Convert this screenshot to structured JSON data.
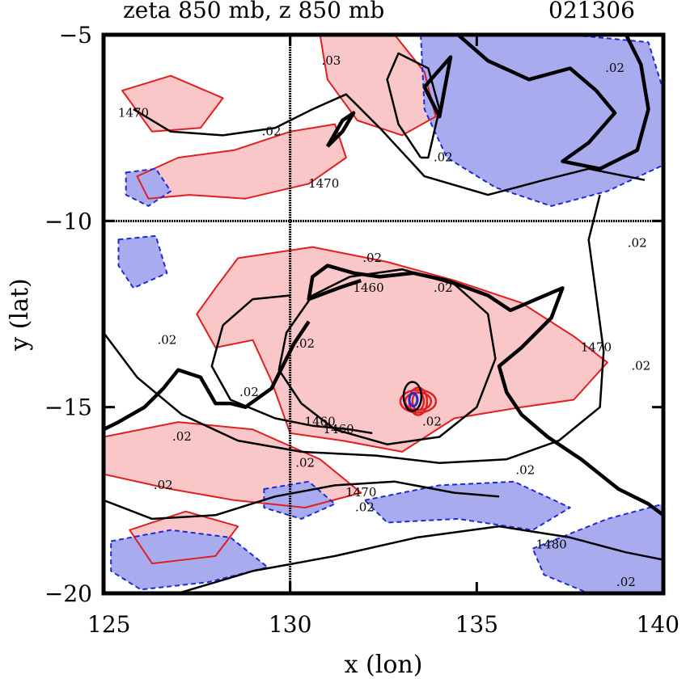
{
  "chart_data": {
    "type": "contour",
    "title_left": "zeta 850 mb, z 850 mb",
    "title_right": "021306",
    "xlabel": "x (lon)",
    "ylabel": "y (lat)",
    "xlim": [
      125,
      140
    ],
    "ylim": [
      -20,
      -5
    ],
    "xticks": [
      {
        "value": 125,
        "label": "125"
      },
      {
        "value": 130,
        "label": "130"
      },
      {
        "value": 135,
        "label": "135"
      },
      {
        "value": 140,
        "label": "140"
      }
    ],
    "yticks": [
      {
        "value": -5,
        "label": "−5"
      },
      {
        "value": -10,
        "label": "−10"
      },
      {
        "value": -15,
        "label": "−15"
      },
      {
        "value": -20,
        "label": "−20"
      }
    ],
    "grid_lines": {
      "x": [
        130
      ],
      "y": [
        -10
      ]
    },
    "colors": {
      "positive_fill": "#f9c7c7",
      "positive_line": "#e02020",
      "negative_fill": "#a9abef",
      "negative_line": "#1e2ad6",
      "height_line": "#000000"
    },
    "height_contours": [
      {
        "level": 1460,
        "points": [
          [
            131.6,
            -11.5
          ],
          [
            133.0,
            -11.3
          ],
          [
            134.4,
            -11.7
          ],
          [
            135.3,
            -12.5
          ],
          [
            135.5,
            -13.7
          ],
          [
            135.0,
            -15.0
          ],
          [
            134.0,
            -15.8
          ],
          [
            132.6,
            -16.0
          ],
          [
            131.2,
            -15.6
          ],
          [
            130.3,
            -14.9
          ],
          [
            129.7,
            -14.0
          ],
          [
            129.9,
            -13.0
          ],
          [
            130.6,
            -12.0
          ],
          [
            131.6,
            -11.5
          ]
        ]
      },
      {
        "level": 1460,
        "points": [
          [
            130.0,
            -12.0
          ],
          [
            129.0,
            -12.1
          ],
          [
            128.2,
            -12.8
          ],
          [
            127.9,
            -13.9
          ],
          [
            128.4,
            -14.8
          ],
          [
            129.6,
            -15.3
          ],
          [
            130.6,
            -15.5
          ],
          [
            131.6,
            -15.6
          ],
          [
            132.2,
            -15.7
          ]
        ]
      },
      {
        "level": 1470,
        "points": [
          [
            125.0,
            -13.0
          ],
          [
            125.9,
            -14.2
          ],
          [
            127.1,
            -15.2
          ],
          [
            128.6,
            -15.9
          ],
          [
            130.3,
            -16.2
          ],
          [
            132.3,
            -16.3
          ],
          [
            134.0,
            -16.5
          ],
          [
            135.8,
            -16.4
          ],
          [
            137.2,
            -15.9
          ],
          [
            138.3,
            -15.0
          ],
          [
            138.4,
            -13.5
          ],
          [
            138.2,
            -12.0
          ],
          [
            138.0,
            -10.5
          ],
          [
            138.3,
            -9.3
          ]
        ]
      },
      {
        "level": 1470,
        "points": [
          [
            125.0,
            -17.5
          ],
          [
            126.3,
            -18.0
          ],
          [
            128.0,
            -17.9
          ],
          [
            129.6,
            -17.4
          ],
          [
            131.2,
            -17.1
          ],
          [
            132.8,
            -17.0
          ],
          [
            134.4,
            -17.3
          ],
          [
            135.6,
            -17.4
          ]
        ]
      },
      {
        "level": 1470,
        "points": [
          [
            125.8,
            -7.0
          ],
          [
            126.8,
            -7.6
          ],
          [
            128.2,
            -7.7
          ],
          [
            129.6,
            -7.5
          ],
          [
            130.6,
            -7.0
          ],
          [
            131.5,
            -6.6
          ],
          [
            132.4,
            -7.5
          ],
          [
            133.6,
            -8.8
          ],
          [
            135.3,
            -9.3
          ],
          [
            136.8,
            -8.9
          ],
          [
            138.0,
            -8.6
          ],
          [
            139.5,
            -8.9
          ]
        ]
      },
      {
        "level": 1480,
        "points": [
          [
            127.0,
            -20.0
          ],
          [
            129.0,
            -19.4
          ],
          [
            131.2,
            -19.0
          ],
          [
            133.4,
            -18.5
          ],
          [
            135.6,
            -18.2
          ],
          [
            137.5,
            -18.5
          ],
          [
            139.0,
            -18.9
          ],
          [
            140.0,
            -19.1
          ]
        ]
      },
      {
        "level": 1460,
        "points": [
          [
            133.5,
            -8.3
          ],
          [
            132.9,
            -7.4
          ],
          [
            132.6,
            -6.2
          ],
          [
            132.9,
            -5.5
          ],
          [
            133.7,
            -5.9
          ],
          [
            134.0,
            -7.0
          ],
          [
            133.7,
            -8.3
          ],
          [
            133.5,
            -8.3
          ]
        ]
      }
    ],
    "coastlines": [
      {
        "points": [
          [
            131.9,
            -11.6
          ],
          [
            131.3,
            -11.8
          ],
          [
            130.5,
            -12.1
          ],
          [
            130.6,
            -11.5
          ],
          [
            131.0,
            -11.2
          ],
          [
            131.7,
            -11.4
          ],
          [
            132.4,
            -11.5
          ],
          [
            133.3,
            -11.4
          ],
          [
            134.2,
            -11.6
          ],
          [
            135.3,
            -12.0
          ],
          [
            135.9,
            -12.4
          ],
          [
            136.6,
            -12.1
          ],
          [
            137.3,
            -11.8
          ],
          [
            137.0,
            -12.6
          ],
          [
            136.2,
            -13.4
          ],
          [
            135.6,
            -13.9
          ],
          [
            135.8,
            -14.6
          ],
          [
            136.2,
            -15.2
          ],
          [
            136.9,
            -15.8
          ],
          [
            137.8,
            -16.4
          ],
          [
            138.8,
            -17.2
          ],
          [
            139.6,
            -17.6
          ],
          [
            140.0,
            -17.9
          ]
        ]
      },
      {
        "points": [
          [
            130.5,
            -12.7
          ],
          [
            130.1,
            -13.3
          ],
          [
            129.5,
            -14.5
          ],
          [
            128.8,
            -15.0
          ],
          [
            128.4,
            -14.9
          ],
          [
            128.0,
            -14.9
          ],
          [
            127.6,
            -14.2
          ],
          [
            127.0,
            -14.0
          ],
          [
            126.6,
            -14.5
          ],
          [
            126.1,
            -15.0
          ],
          [
            125.4,
            -15.4
          ],
          [
            125.0,
            -15.6
          ]
        ]
      },
      {
        "points": [
          [
            134.5,
            -5.0
          ],
          [
            135.3,
            -5.7
          ],
          [
            136.4,
            -6.2
          ],
          [
            137.5,
            -5.9
          ],
          [
            138.2,
            -6.5
          ],
          [
            138.7,
            -7.1
          ],
          [
            138.0,
            -7.9
          ],
          [
            137.3,
            -8.4
          ],
          [
            138.3,
            -8.6
          ],
          [
            139.3,
            -8.1
          ],
          [
            139.6,
            -7.0
          ],
          [
            139.4,
            -5.8
          ],
          [
            139.0,
            -5.0
          ]
        ]
      },
      {
        "points": [
          [
            131.0,
            -8.0
          ],
          [
            131.4,
            -7.6
          ],
          [
            131.7,
            -7.1
          ],
          [
            131.4,
            -7.3
          ],
          [
            131.0,
            -8.0
          ]
        ]
      },
      {
        "points": [
          [
            133.6,
            -6.4
          ],
          [
            134.3,
            -5.6
          ],
          [
            134.0,
            -7.2
          ],
          [
            133.6,
            -6.4
          ]
        ]
      }
    ],
    "vorticity_regions": [
      {
        "sign": "positive",
        "points": [
          [
            128.6,
            -11.0
          ],
          [
            130.6,
            -10.7
          ],
          [
            132.6,
            -11.1
          ],
          [
            134.4,
            -11.6
          ],
          [
            136.2,
            -12.2
          ],
          [
            137.6,
            -13.1
          ],
          [
            138.5,
            -13.8
          ],
          [
            137.6,
            -14.8
          ],
          [
            136.2,
            -15.0
          ],
          [
            134.4,
            -15.3
          ],
          [
            133.0,
            -16.2
          ],
          [
            131.4,
            -15.9
          ],
          [
            130.0,
            -15.7
          ],
          [
            129.5,
            -14.3
          ],
          [
            129.0,
            -13.2
          ],
          [
            128.0,
            -13.4
          ],
          [
            127.5,
            -12.5
          ],
          [
            128.0,
            -11.8
          ],
          [
            128.6,
            -11.0
          ]
        ]
      },
      {
        "sign": "positive",
        "points": [
          [
            125.9,
            -8.8
          ],
          [
            127.0,
            -8.3
          ],
          [
            128.5,
            -8.1
          ],
          [
            130.0,
            -7.6
          ],
          [
            131.2,
            -7.4
          ],
          [
            131.5,
            -8.3
          ],
          [
            130.5,
            -9.0
          ],
          [
            128.8,
            -9.4
          ],
          [
            127.3,
            -9.3
          ],
          [
            126.2,
            -9.4
          ],
          [
            125.9,
            -8.8
          ]
        ]
      },
      {
        "sign": "positive",
        "points": [
          [
            125.5,
            -6.5
          ],
          [
            126.8,
            -6.1
          ],
          [
            128.2,
            -6.7
          ],
          [
            127.6,
            -7.5
          ],
          [
            126.3,
            -7.6
          ],
          [
            125.5,
            -6.5
          ]
        ]
      },
      {
        "sign": "positive",
        "points": [
          [
            125.0,
            -15.8
          ],
          [
            127.0,
            -15.4
          ],
          [
            129.0,
            -15.6
          ],
          [
            130.8,
            -16.4
          ],
          [
            131.9,
            -17.3
          ],
          [
            130.4,
            -17.7
          ],
          [
            128.5,
            -17.5
          ],
          [
            126.8,
            -17.2
          ],
          [
            125.0,
            -16.8
          ]
        ]
      },
      {
        "sign": "positive",
        "points": [
          [
            130.8,
            -5.0
          ],
          [
            132.8,
            -5.0
          ],
          [
            133.6,
            -6.0
          ],
          [
            133.9,
            -7.2
          ],
          [
            133.0,
            -7.7
          ],
          [
            131.8,
            -7.3
          ],
          [
            131.0,
            -6.2
          ],
          [
            130.8,
            -5.0
          ]
        ]
      },
      {
        "sign": "positive",
        "points": [
          [
            125.7,
            -18.3
          ],
          [
            127.2,
            -17.8
          ],
          [
            128.6,
            -18.2
          ],
          [
            128.0,
            -19.0
          ],
          [
            126.3,
            -19.2
          ],
          [
            125.7,
            -18.3
          ]
        ]
      },
      {
        "sign": "negative",
        "points": [
          [
            133.5,
            -5.0
          ],
          [
            137.5,
            -5.0
          ],
          [
            139.6,
            -5.2
          ],
          [
            140.0,
            -6.5
          ],
          [
            140.0,
            -8.5
          ],
          [
            138.5,
            -9.2
          ],
          [
            137.0,
            -9.6
          ],
          [
            135.5,
            -9.1
          ],
          [
            134.2,
            -8.3
          ],
          [
            133.6,
            -7.0
          ],
          [
            133.5,
            -5.0
          ]
        ]
      },
      {
        "sign": "negative",
        "points": [
          [
            132.0,
            -17.5
          ],
          [
            134.0,
            -17.1
          ],
          [
            136.0,
            -17.0
          ],
          [
            137.5,
            -17.7
          ],
          [
            136.5,
            -18.3
          ],
          [
            134.5,
            -18.0
          ],
          [
            132.6,
            -18.1
          ],
          [
            132.0,
            -17.5
          ]
        ]
      },
      {
        "sign": "negative",
        "points": [
          [
            125.2,
            -18.6
          ],
          [
            126.8,
            -18.3
          ],
          [
            128.4,
            -18.5
          ],
          [
            129.4,
            -19.3
          ],
          [
            127.8,
            -19.7
          ],
          [
            126.0,
            -19.9
          ],
          [
            125.2,
            -19.4
          ],
          [
            125.2,
            -18.6
          ]
        ]
      },
      {
        "sign": "negative",
        "points": [
          [
            136.5,
            -18.8
          ],
          [
            138.5,
            -18.0
          ],
          [
            140.0,
            -17.6
          ],
          [
            140.0,
            -20.0
          ],
          [
            138.0,
            -20.0
          ],
          [
            136.8,
            -19.5
          ],
          [
            136.5,
            -18.8
          ]
        ]
      },
      {
        "sign": "negative",
        "points": [
          [
            125.4,
            -10.5
          ],
          [
            126.4,
            -10.4
          ],
          [
            126.7,
            -11.4
          ],
          [
            125.8,
            -11.8
          ],
          [
            125.4,
            -11.2
          ],
          [
            125.4,
            -10.5
          ]
        ]
      },
      {
        "sign": "negative",
        "points": [
          [
            125.6,
            -8.7
          ],
          [
            126.4,
            -8.6
          ],
          [
            126.8,
            -9.2
          ],
          [
            126.2,
            -9.6
          ],
          [
            125.6,
            -9.3
          ],
          [
            125.6,
            -8.7
          ]
        ]
      },
      {
        "sign": "negative",
        "points": [
          [
            129.3,
            -17.2
          ],
          [
            130.5,
            -17.0
          ],
          [
            131.2,
            -17.6
          ],
          [
            130.3,
            -18.0
          ],
          [
            129.3,
            -17.7
          ],
          [
            129.3,
            -17.2
          ]
        ]
      }
    ],
    "vortex_center": {
      "x": 133.3,
      "y": -14.8
    },
    "contour_labels": [
      {
        "text": "1470",
        "x": 125.8,
        "y": -7.2
      },
      {
        "text": ".02",
        "x": 129.5,
        "y": -7.7
      },
      {
        "text": ".03",
        "x": 131.1,
        "y": -5.8
      },
      {
        "text": ".02",
        "x": 134.1,
        "y": -8.4
      },
      {
        "text": "1470",
        "x": 130.9,
        "y": -9.1
      },
      {
        "text": ".02",
        "x": 138.7,
        "y": -6.0
      },
      {
        "text": ".02",
        "x": 132.2,
        "y": -11.1
      },
      {
        "text": "1460",
        "x": 132.1,
        "y": -11.9
      },
      {
        "text": ".02",
        "x": 134.1,
        "y": -11.9
      },
      {
        "text": ".02",
        "x": 139.3,
        "y": -10.7
      },
      {
        "text": ".02",
        "x": 126.7,
        "y": -13.3
      },
      {
        "text": ".02",
        "x": 130.4,
        "y": -13.4
      },
      {
        "text": "1470",
        "x": 138.2,
        "y": -13.5
      },
      {
        "text": ".02",
        "x": 139.4,
        "y": -14.0
      },
      {
        "text": ".02",
        "x": 128.9,
        "y": -14.7
      },
      {
        "text": "1460",
        "x": 130.8,
        "y": -15.5
      },
      {
        "text": "1460",
        "x": 131.3,
        "y": -15.7
      },
      {
        "text": ".02",
        "x": 133.8,
        "y": -15.5
      },
      {
        "text": ".02",
        "x": 127.1,
        "y": -15.9
      },
      {
        "text": ".02",
        "x": 130.4,
        "y": -16.6
      },
      {
        "text": ".02",
        "x": 126.6,
        "y": -17.2
      },
      {
        "text": ".02",
        "x": 136.3,
        "y": -16.8
      },
      {
        "text": "1470",
        "x": 131.9,
        "y": -17.4
      },
      {
        "text": ".02",
        "x": 132.0,
        "y": -17.8
      },
      {
        "text": "1480",
        "x": 137.0,
        "y": -18.8
      },
      {
        "text": ".02",
        "x": 139.0,
        "y": -19.8
      }
    ]
  }
}
